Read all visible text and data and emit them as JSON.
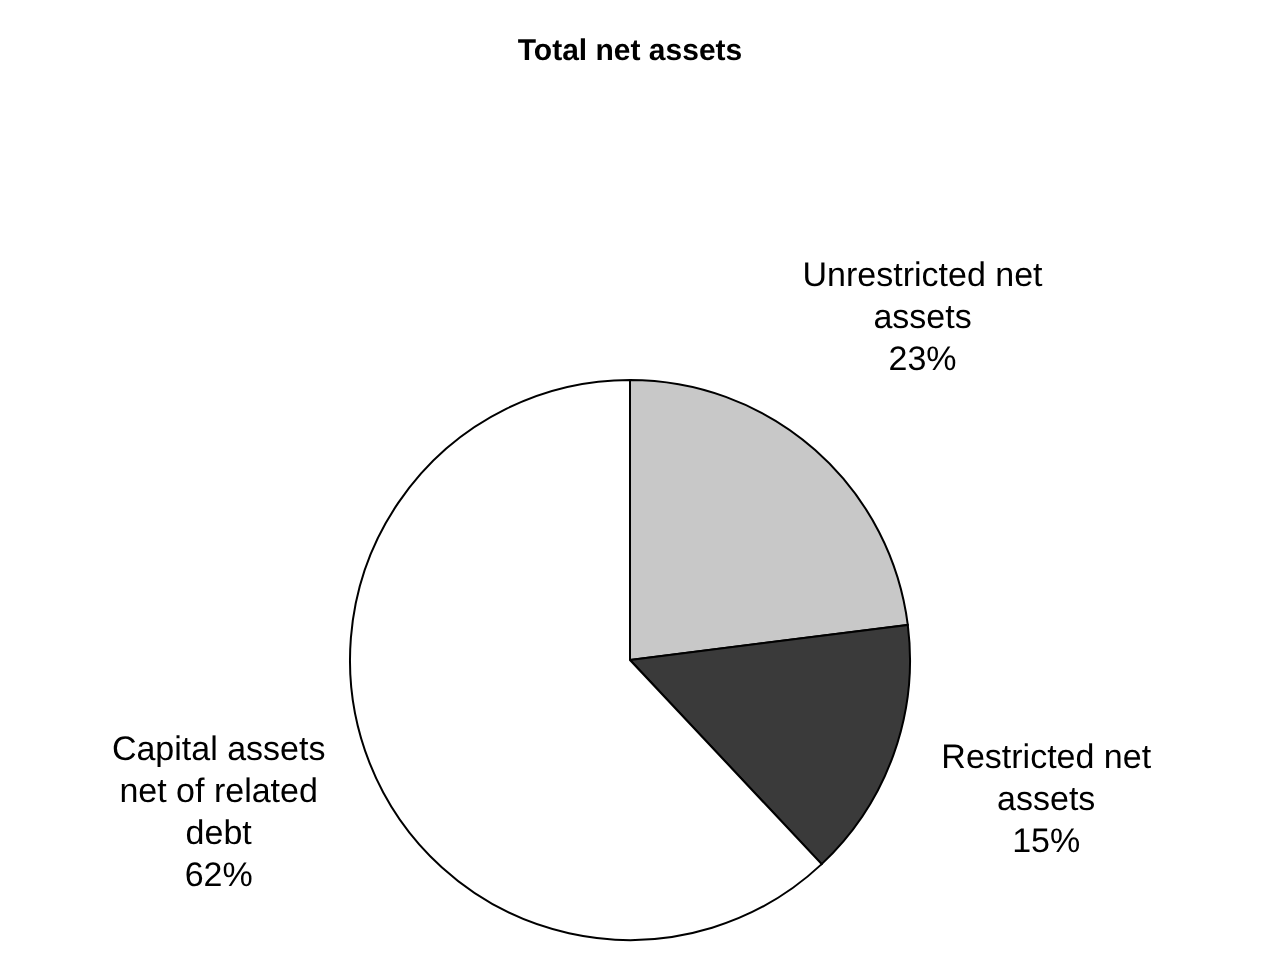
{
  "chart_data": {
    "type": "pie",
    "title": "Total net assets",
    "categories": [
      "Unrestricted net assets",
      "Restricted net assets",
      "Capital assets net of related debt"
    ],
    "values": [
      23,
      15,
      62
    ],
    "colors": [
      "#c8c8c8",
      "#3a3a3a",
      "#ffffff"
    ],
    "value_labels": [
      "23%",
      "15%",
      "62%"
    ]
  }
}
